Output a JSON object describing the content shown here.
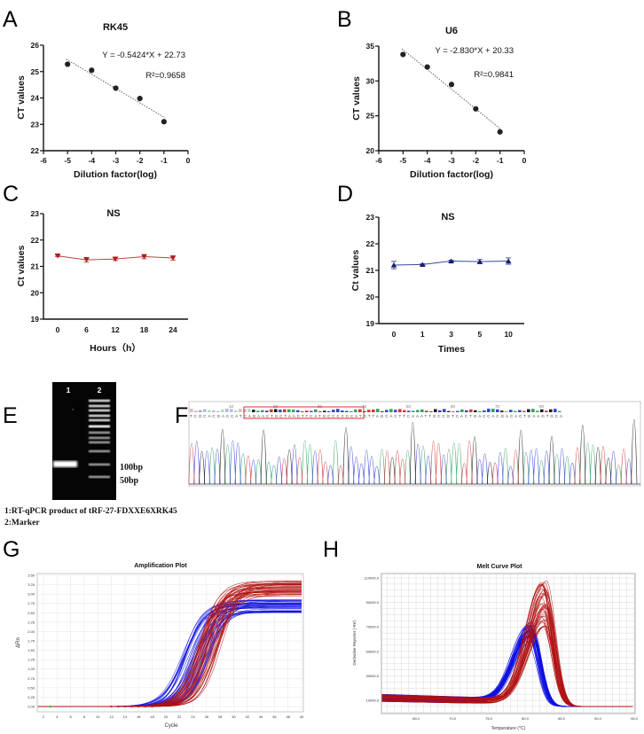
{
  "panel_letters": {
    "A": "A",
    "B": "B",
    "C": "C",
    "D": "D",
    "E": "E",
    "F": "F",
    "G": "G",
    "H": "H"
  },
  "chart_data": [
    {
      "id": "A",
      "type": "scatter",
      "title": "RK45",
      "xlabel": "Dilution factor(log)",
      "ylabel": "CT values",
      "xlim": [
        -6,
        0
      ],
      "ylim": [
        22,
        26
      ],
      "xticks": [
        "-6",
        "-5",
        "-4",
        "-3",
        "-2",
        "-1",
        "0"
      ],
      "yticks": [
        "22",
        "23",
        "24",
        "25",
        "26"
      ],
      "x": [
        -5,
        -4,
        -3,
        -2,
        -1
      ],
      "y": [
        25.28,
        25.05,
        24.37,
        23.98,
        23.1
      ],
      "fit": {
        "slope": -0.5424,
        "intercept": 22.73,
        "style": "dotted"
      },
      "equation": "Y = -0.5424*X + 22.73",
      "r2": "R²=0.9658",
      "color": "#222222"
    },
    {
      "id": "B",
      "type": "scatter",
      "title": "U6",
      "xlabel": "Dilution factor(log)",
      "ylabel": "CT values",
      "xlim": [
        -6,
        0
      ],
      "ylim": [
        20,
        35
      ],
      "xticks": [
        "-6",
        "-5",
        "-4",
        "-3",
        "-2",
        "-1",
        "0"
      ],
      "yticks": [
        "20",
        "25",
        "30",
        "35"
      ],
      "x": [
        -5,
        -4,
        -3,
        -2,
        -1
      ],
      "y": [
        33.8,
        32.0,
        29.5,
        26.0,
        22.7
      ],
      "fit": {
        "slope": -2.83,
        "intercept": 20.33,
        "style": "dotted"
      },
      "equation": "Y = -2.830*X + 20.33",
      "r2": "R²=0.9841",
      "color": "#222222"
    },
    {
      "id": "C",
      "type": "line",
      "title": "NS",
      "xlabel": "Hours（h）",
      "ylabel": "Ct values",
      "categories": [
        "0",
        "6",
        "12",
        "18",
        "24"
      ],
      "ylim": [
        19,
        23
      ],
      "yticks": [
        "19",
        "20",
        "21",
        "22",
        "23"
      ],
      "values": [
        21.4,
        21.25,
        21.28,
        21.37,
        21.32
      ],
      "errors": [
        0.03,
        0.09,
        0.06,
        0.08,
        0.08
      ],
      "marker": "triangle-down",
      "color": "#b01c1c",
      "line_color": "#c04040"
    },
    {
      "id": "D",
      "type": "line",
      "title": "NS",
      "xlabel": "Times",
      "ylabel": "Ct values",
      "categories": [
        "0",
        "1",
        "3",
        "5",
        "10"
      ],
      "ylim": [
        19,
        23
      ],
      "yticks": [
        "19",
        "20",
        "21",
        "22",
        "23"
      ],
      "values": [
        21.2,
        21.22,
        21.35,
        21.33,
        21.35
      ],
      "errors": [
        0.14,
        0.03,
        0.03,
        0.08,
        0.12
      ],
      "marker": "triangle-up",
      "color": "#1c1c70",
      "line_color": "#3a4aa0"
    },
    {
      "id": "G",
      "type": "line",
      "title": "Amplification Plot",
      "xlabel": "Cycle",
      "ylabel": "ΔRn",
      "xlim": [
        1,
        40
      ],
      "ylim": [
        0,
        3.5
      ],
      "xticks": [
        "2",
        "4",
        "6",
        "8",
        "10",
        "12",
        "14",
        "16",
        "18",
        "20",
        "22",
        "24",
        "26",
        "28",
        "30",
        "32",
        "34",
        "36",
        "38",
        "40"
      ],
      "yticks": [
        "0.00",
        "0.25",
        "0.50",
        "0.75",
        "1.00",
        "1.25",
        "1.50",
        "1.75",
        "2.00",
        "2.25",
        "2.50",
        "2.75",
        "3.00",
        "3.25",
        "3.50"
      ],
      "grid": true,
      "series_groups": [
        {
          "color": "#1010e0",
          "plateau_range": [
            2.5,
            2.85
          ],
          "ct_midpoint_range": [
            22.5,
            26.5
          ]
        },
        {
          "color": "#b01010",
          "plateau_range": [
            2.95,
            3.35
          ],
          "ct_midpoint_range": [
            24.5,
            28.2
          ]
        }
      ]
    },
    {
      "id": "H",
      "type": "line",
      "title": "Melt Curve Plot",
      "xlabel": "Temperature (°C)",
      "ylabel": "Derivative Reporter (-Rn')",
      "xlim": [
        60.2,
        95
      ],
      "ylim": [
        -1000,
        113000
      ],
      "xticks": [
        "65.0",
        "70.0",
        "75.0",
        "80.0",
        "85.0",
        "90.0",
        "95.0"
      ],
      "yticks": [
        "10000.0",
        "30000.0",
        "50000.0",
        "70000.0",
        "90000.0",
        "110000.0"
      ],
      "grid": true,
      "series_groups": [
        {
          "color": "#1010e0",
          "peak_temp_range": [
            80.2,
            81.0
          ],
          "peak_height_range": [
            58000,
            74000
          ]
        },
        {
          "color": "#b01010",
          "peak_temp_range": [
            82.2,
            83.0
          ],
          "peak_height_range": [
            68000,
            108000
          ]
        }
      ]
    }
  ],
  "gel": {
    "lane_labels": [
      "1",
      "2"
    ],
    "marker_labels": [
      "100bp",
      "50bp"
    ],
    "caption_lines": [
      "1:RT-qPCR product of tRF-27-FDXXE6XRK45",
      "2:Marker"
    ]
  },
  "sequencing": {
    "position_ticks": [
      "10",
      "20",
      "30",
      "40",
      "50",
      "60",
      "70",
      "80"
    ],
    "sequence": "TCGCACGACCATCAGAACTGCTAACTTCATGCCCCCCATGTTAGCACTTCAAATTGCCGTCACTGACCACGACACTGAAGTGCA",
    "base_colors": {
      "A": "#2a9a5a",
      "C": "#2a3ad0",
      "G": "#111111",
      "T": "#d02a2a"
    },
    "highlight_color": "#e03030"
  }
}
